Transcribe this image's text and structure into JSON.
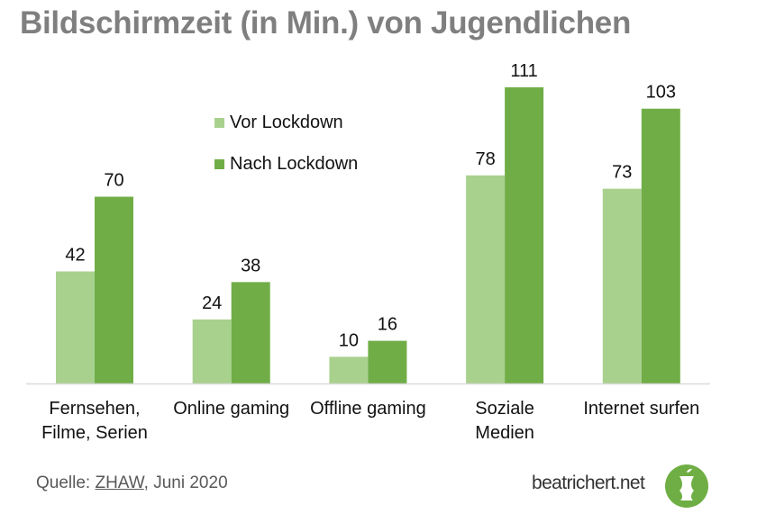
{
  "chart_data": {
    "type": "bar",
    "title": "Bildschirmzeit (in Min.) von Jugendlichen",
    "xlabel": "",
    "ylabel": "",
    "ylim": [
      0,
      111
    ],
    "grid": false,
    "legend_position": "top-center",
    "categories": [
      [
        "Fernsehen,",
        "Filme, Serien"
      ],
      [
        "Online gaming"
      ],
      [
        "Offline gaming"
      ],
      [
        "Soziale",
        "Medien"
      ],
      [
        "Internet surfen"
      ]
    ],
    "series": [
      {
        "name": "Vor Lockdown",
        "color": "#a9d18e",
        "values": [
          42,
          24,
          10,
          78,
          73
        ]
      },
      {
        "name": "Nach Lockdown",
        "color": "#70ad47",
        "values": [
          70,
          38,
          16,
          111,
          103
        ]
      }
    ]
  },
  "footer": {
    "source_prefix": "Quelle: ",
    "source_link": "ZHAW",
    "source_suffix": ", Juni 2020",
    "brand": "beatrichert.net",
    "logo_icon": "apple-core-icon"
  }
}
